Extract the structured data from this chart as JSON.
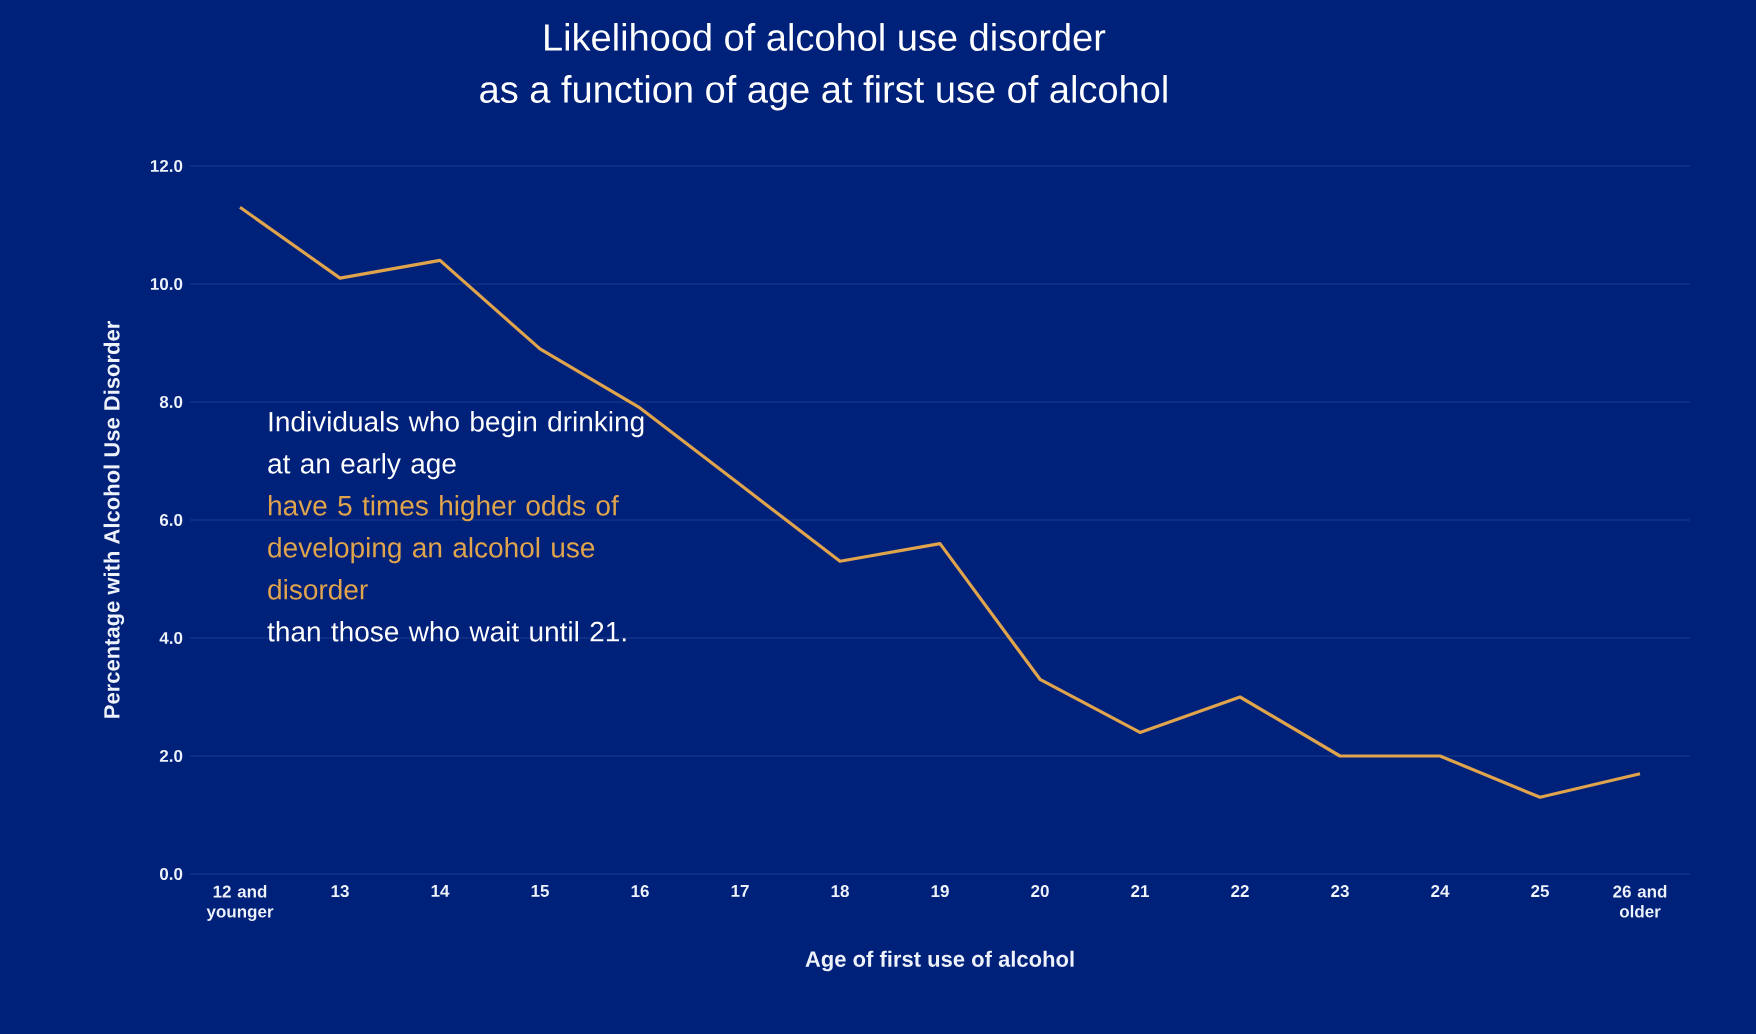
{
  "chart_data": {
    "type": "line",
    "title": "Likelihood of alcohol use disorder",
    "subtitle": "as a function of age at first use of alcohol",
    "xlabel": "Age of first use of alcohol",
    "ylabel": "Percentage with Alcohol Use Disorder",
    "categories": [
      "12 and younger",
      "13",
      "14",
      "15",
      "16",
      "17",
      "18",
      "19",
      "20",
      "21",
      "22",
      "23",
      "24",
      "25",
      "26 and older"
    ],
    "series": [
      {
        "color": "#e0a44c",
        "values": [
          11.3,
          10.1,
          10.4,
          8.9,
          7.9,
          6.6,
          5.3,
          5.6,
          3.3,
          2.4,
          3.0,
          2.0,
          2.0,
          1.3,
          1.7
        ]
      }
    ],
    "ylim": [
      0,
      12
    ],
    "yticks": [
      {
        "value": 0,
        "label": "0.0"
      },
      {
        "value": 2,
        "label": "2.0"
      },
      {
        "value": 4,
        "label": "4.0"
      },
      {
        "value": 6,
        "label": "6.0"
      },
      {
        "value": 8,
        "label": "8.0"
      },
      {
        "value": 10,
        "label": "10.0"
      },
      {
        "value": 12,
        "label": "12.0"
      }
    ],
    "grid": "y",
    "marker": "none",
    "line_style": "solid",
    "annotations": [
      "Individuals who begin drinking at an early age",
      "have 5 times higher odds of developing an alcohol use disorder",
      "than those who wait until 21."
    ]
  }
}
